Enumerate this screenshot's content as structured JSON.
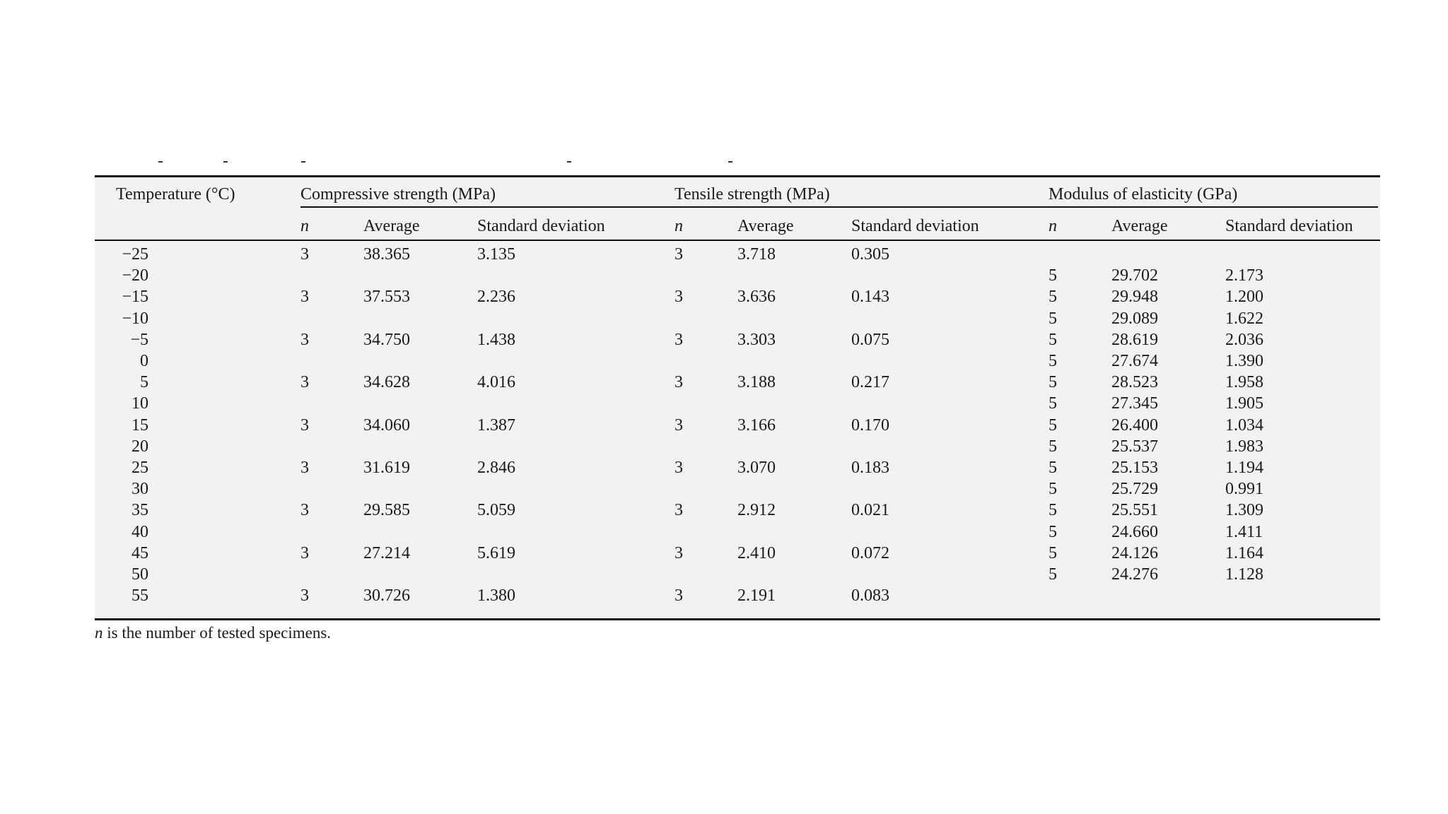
{
  "header": {
    "temperature": "Temperature (°C)",
    "groups": [
      {
        "label": "Compressive strength (MPa)"
      },
      {
        "label": "Tensile strength (MPa)"
      },
      {
        "label": "Modulus of elasticity (GPa)"
      }
    ],
    "sub": {
      "n": "n",
      "average": "Average",
      "sd": "Standard deviation"
    }
  },
  "rows": [
    {
      "t": "−25",
      "cn": "3",
      "ca": "38.365",
      "cs": "3.135",
      "tn": "3",
      "ta": "3.718",
      "ts": "0.305",
      "mn": "",
      "ma": "",
      "ms": ""
    },
    {
      "t": "−20",
      "cn": "",
      "ca": "",
      "cs": "",
      "tn": "",
      "ta": "",
      "ts": "",
      "mn": "5",
      "ma": "29.702",
      "ms": "2.173"
    },
    {
      "t": "−15",
      "cn": "3",
      "ca": "37.553",
      "cs": "2.236",
      "tn": "3",
      "ta": "3.636",
      "ts": "0.143",
      "mn": "5",
      "ma": "29.948",
      "ms": "1.200"
    },
    {
      "t": "−10",
      "cn": "",
      "ca": "",
      "cs": "",
      "tn": "",
      "ta": "",
      "ts": "",
      "mn": "5",
      "ma": "29.089",
      "ms": "1.622"
    },
    {
      "t": "−5",
      "cn": "3",
      "ca": "34.750",
      "cs": "1.438",
      "tn": "3",
      "ta": "3.303",
      "ts": "0.075",
      "mn": "5",
      "ma": "28.619",
      "ms": "2.036"
    },
    {
      "t": "0",
      "cn": "",
      "ca": "",
      "cs": "",
      "tn": "",
      "ta": "",
      "ts": "",
      "mn": "5",
      "ma": "27.674",
      "ms": "1.390"
    },
    {
      "t": "5",
      "cn": "3",
      "ca": "34.628",
      "cs": "4.016",
      "tn": "3",
      "ta": "3.188",
      "ts": "0.217",
      "mn": "5",
      "ma": "28.523",
      "ms": "1.958"
    },
    {
      "t": "10",
      "cn": "",
      "ca": "",
      "cs": "",
      "tn": "",
      "ta": "",
      "ts": "",
      "mn": "5",
      "ma": "27.345",
      "ms": "1.905"
    },
    {
      "t": "15",
      "cn": "3",
      "ca": "34.060",
      "cs": "1.387",
      "tn": "3",
      "ta": "3.166",
      "ts": "0.170",
      "mn": "5",
      "ma": "26.400",
      "ms": "1.034"
    },
    {
      "t": "20",
      "cn": "",
      "ca": "",
      "cs": "",
      "tn": "",
      "ta": "",
      "ts": "",
      "mn": "5",
      "ma": "25.537",
      "ms": "1.983"
    },
    {
      "t": "25",
      "cn": "3",
      "ca": "31.619",
      "cs": "2.846",
      "tn": "3",
      "ta": "3.070",
      "ts": "0.183",
      "mn": "5",
      "ma": "25.153",
      "ms": "1.194"
    },
    {
      "t": "30",
      "cn": "",
      "ca": "",
      "cs": "",
      "tn": "",
      "ta": "",
      "ts": "",
      "mn": "5",
      "ma": "25.729",
      "ms": "0.991"
    },
    {
      "t": "35",
      "cn": "3",
      "ca": "29.585",
      "cs": "5.059",
      "tn": "3",
      "ta": "2.912",
      "ts": "0.021",
      "mn": "5",
      "ma": "25.551",
      "ms": "1.309"
    },
    {
      "t": "40",
      "cn": "",
      "ca": "",
      "cs": "",
      "tn": "",
      "ta": "",
      "ts": "",
      "mn": "5",
      "ma": "24.660",
      "ms": "1.411"
    },
    {
      "t": "45",
      "cn": "3",
      "ca": "27.214",
      "cs": "5.619",
      "tn": "3",
      "ta": "2.410",
      "ts": "0.072",
      "mn": "5",
      "ma": "24.126",
      "ms": "1.164"
    },
    {
      "t": "50",
      "cn": "",
      "ca": "",
      "cs": "",
      "tn": "",
      "ta": "",
      "ts": "",
      "mn": "5",
      "ma": "24.276",
      "ms": "1.128"
    },
    {
      "t": "55",
      "cn": "3",
      "ca": "30.726",
      "cs": "1.380",
      "tn": "3",
      "ta": "2.191",
      "ts": "0.083",
      "mn": "",
      "ma": "",
      "ms": ""
    }
  ],
  "footnote": {
    "n": "n",
    "text": " is the number of tested specimens."
  }
}
